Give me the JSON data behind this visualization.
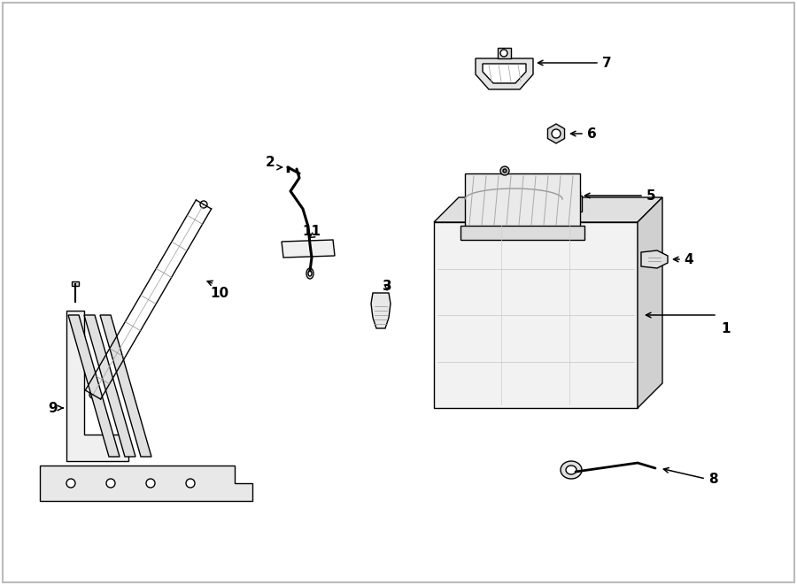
{
  "bg_color": "#ffffff",
  "line_color": "#000000",
  "label_color": "#000000",
  "figsize": [
    9.0,
    6.61
  ],
  "dpi": 100,
  "border_color": "#aaaaaa"
}
